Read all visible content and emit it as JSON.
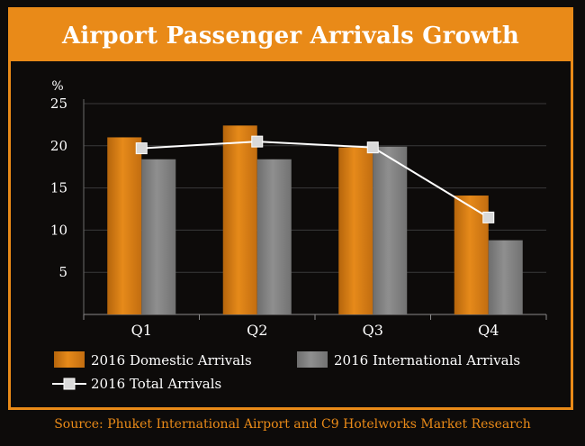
{
  "title": "Airport Passenger Arrivals Growth",
  "source": "Source: Phuket International Airport and C9 Hotelworks Market Research",
  "colors": {
    "accent": "#e98a18",
    "domestic": "#e68a1a",
    "international": "#8f8f8f",
    "total_line": "#ffffff",
    "background": "#0d0b0a"
  },
  "chart_data": {
    "type": "bar",
    "title": "Airport Passenger Arrivals Growth",
    "ylabel": "%",
    "ylim": [
      0,
      25
    ],
    "yticks": [
      5,
      10,
      15,
      20,
      25
    ],
    "grid": true,
    "categories": [
      "Q1",
      "Q2",
      "Q3",
      "Q4"
    ],
    "series": [
      {
        "name": "2016 Domestic Arrivals",
        "kind": "bar",
        "values": [
          21.0,
          22.4,
          19.8,
          14.1
        ]
      },
      {
        "name": "2016 International Arrivals",
        "kind": "bar",
        "values": [
          18.4,
          18.4,
          19.9,
          8.8
        ]
      },
      {
        "name": "2016 Total Arrivals",
        "kind": "line",
        "values": [
          19.7,
          20.5,
          19.8,
          11.5
        ]
      }
    ],
    "legend_position": "bottom"
  }
}
